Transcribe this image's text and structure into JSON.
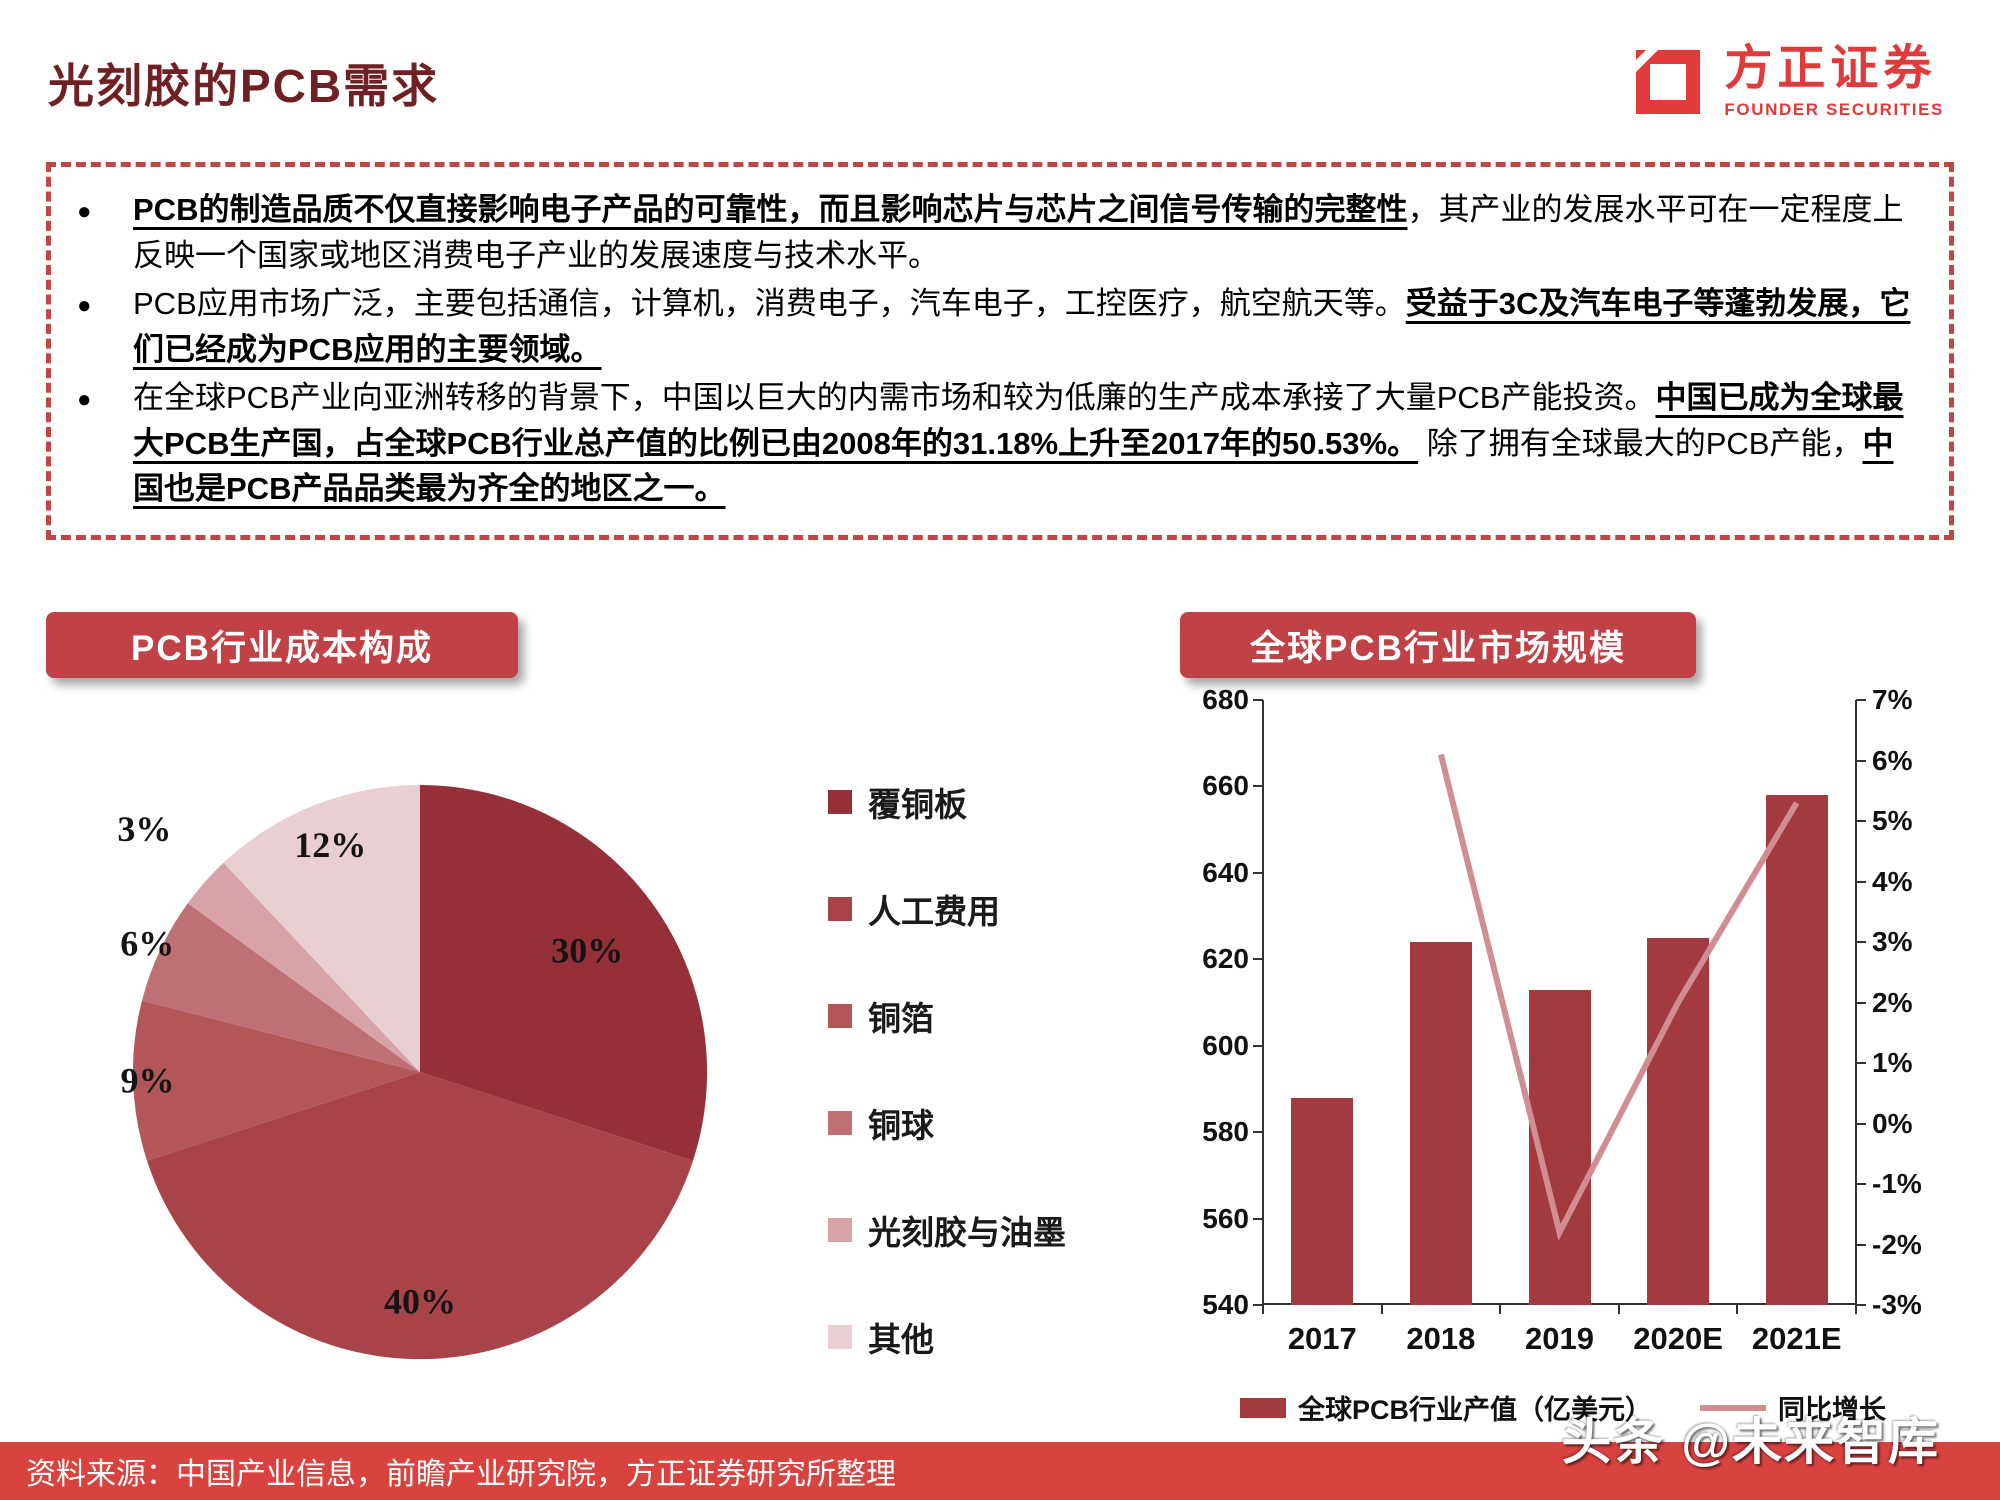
{
  "page": {
    "title": "光刻胶的PCB需求",
    "logo": {
      "name": "方正证券",
      "sub": "FOUNDER SECURITIES"
    },
    "footer": {
      "source": "资料来源：中国产业信息，前瞻产业研究院，方正证券研究所整理",
      "watermark": "头条 @未来智库"
    }
  },
  "bullets": [
    {
      "segments": [
        {
          "text": "PCB的制造品质不仅直接影响电子产品的可靠性，而且影响芯片与芯片之间信号传输的完整性",
          "emphasis": true
        },
        {
          "text": "，其产业的发展水平可在一定程度上反映一个国家或地区消费电子产业的发展速度与技术水平。",
          "emphasis": false
        }
      ]
    },
    {
      "segments": [
        {
          "text": "PCB应用市场广泛，主要包括通信，计算机，消费电子，汽车电子，工控医疗，航空航天等。",
          "emphasis": false
        },
        {
          "text": "受益于3C及汽车电子等蓬勃发展，它们已经成为PCB应用的主要领域。",
          "emphasis": true
        }
      ]
    },
    {
      "segments": [
        {
          "text": "在全球PCB产业向亚洲转移的背景下，中国以巨大的内需市场和较为低廉的生产成本承接了大量PCB产能投资。",
          "emphasis": false
        },
        {
          "text": "中国已成为全球最大PCB生产国，占全球PCB行业总产值的比例已由2008年的31.18%上升至2017年的50.53%。",
          "emphasis": true
        },
        {
          "text": " 除了拥有全球最大的PCB产能，",
          "emphasis": false
        },
        {
          "text": "中国也是PCB产品品类最为齐全的地区之一。",
          "emphasis": true
        }
      ]
    }
  ],
  "chart_data": [
    {
      "type": "pie",
      "title": "PCB行业成本构成",
      "labels": [
        "覆铜板",
        "人工费用",
        "铜箔",
        "铜球",
        "光刻胶与油墨",
        "其他"
      ],
      "values": [
        30,
        40,
        9,
        6,
        3,
        12
      ],
      "value_labels": [
        "30%",
        "40%",
        "9%",
        "6%",
        "3%",
        "12%"
      ],
      "colors": [
        "#953039",
        "#a84449",
        "#b25659",
        "#bf7074",
        "#d8a3a8",
        "#e9ced2"
      ],
      "start_angle": "top",
      "direction": "clockwise",
      "legend_position": "right"
    },
    {
      "type": "bar+line",
      "title": "全球PCB行业市场规模",
      "categories": [
        "2017",
        "2018",
        "2019",
        "2020E",
        "2021E"
      ],
      "series": [
        {
          "name": "全球PCB行业产值（亿美元）",
          "kind": "bar",
          "axis": "left",
          "color": "#a23a3f",
          "values": [
            588,
            624,
            613,
            625,
            658
          ]
        },
        {
          "name": "同比增长",
          "kind": "line",
          "axis": "right",
          "color": "#d08d92",
          "values": [
            null,
            6.1,
            -1.8,
            2.0,
            5.3
          ]
        }
      ],
      "left_axis": {
        "min": 540,
        "max": 680,
        "ticks": [
          "540",
          "560",
          "580",
          "600",
          "620",
          "640",
          "660",
          "680"
        ]
      },
      "right_axis": {
        "min": -3,
        "max": 7,
        "ticks": [
          "-3%",
          "-2%",
          "-1%",
          "0%",
          "1%",
          "2%",
          "3%",
          "4%",
          "5%",
          "6%",
          "7%"
        ]
      },
      "grid": false,
      "legend_position": "bottom"
    }
  ]
}
